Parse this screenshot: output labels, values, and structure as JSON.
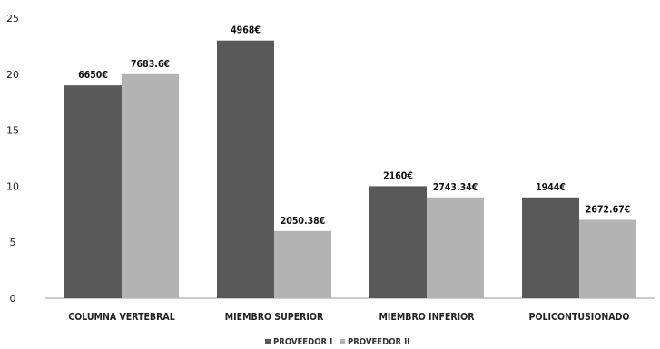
{
  "chart_data": {
    "type": "bar",
    "categories": [
      "COLUMNA VERTEBRAL",
      "MIEMBRO SUPERIOR",
      "MIEMBRO INFERIOR",
      "POLICONTUSIONADO"
    ],
    "series": [
      {
        "name": "PROVEEDOR I",
        "color": "#595959",
        "values": [
          19,
          23,
          10,
          9
        ],
        "labels": [
          "6650€",
          "4968€",
          "2160€",
          "1944€"
        ]
      },
      {
        "name": "PROVEEDOR II",
        "color": "#b3b3b3",
        "values": [
          20,
          6,
          9,
          7
        ],
        "labels": [
          "7683.6€",
          "2050.38€",
          "2743.34€",
          "2672.67€"
        ]
      }
    ],
    "yticks": [
      0,
      5,
      10,
      15,
      20,
      25
    ],
    "ylim": [
      0,
      25
    ],
    "grid": false,
    "legend_position": "bottom-center"
  }
}
